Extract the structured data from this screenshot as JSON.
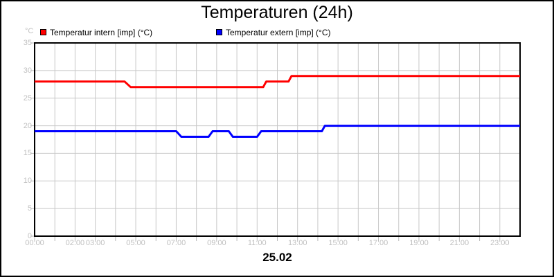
{
  "title": "Temperaturen (24h)",
  "y_axis_unit": "°C",
  "date_label": "25.02",
  "legend": [
    {
      "label": "Temperatur intern [imp] (°C)",
      "color": "#ff0000"
    },
    {
      "label": "Temperatur extern [imp] (°C)",
      "color": "#0000ff"
    }
  ],
  "chart_data": {
    "type": "line",
    "subtype": "step",
    "title": "Temperaturen (24h)",
    "xlabel": "25.02",
    "ylabel": "°C",
    "xlim": [
      0,
      24
    ],
    "ylim": [
      0,
      35
    ],
    "grid": true,
    "legend_position": "top",
    "y_ticks": [
      0,
      5,
      10,
      15,
      20,
      25,
      30,
      35
    ],
    "x_gridline_every_hours": 1,
    "x_tick_labels": [
      {
        "hour": 0,
        "label": "00:00"
      },
      {
        "hour": 2,
        "label": "02:00"
      },
      {
        "hour": 3,
        "label": "03:00"
      },
      {
        "hour": 5,
        "label": "05:00"
      },
      {
        "hour": 7,
        "label": "07:00"
      },
      {
        "hour": 9,
        "label": "09:00"
      },
      {
        "hour": 11,
        "label": "11:00"
      },
      {
        "hour": 13,
        "label": "13:00"
      },
      {
        "hour": 15,
        "label": "15:00"
      },
      {
        "hour": 17,
        "label": "17:00"
      },
      {
        "hour": 19,
        "label": "19:00"
      },
      {
        "hour": 21,
        "label": "21:00"
      },
      {
        "hour": 23,
        "label": "23:00"
      }
    ],
    "series": [
      {
        "name": "Temperatur intern [imp] (°C)",
        "color": "#ff0000",
        "points_hour_value": [
          [
            0,
            28
          ],
          [
            4.45,
            28
          ],
          [
            4.75,
            27
          ],
          [
            11.3,
            27
          ],
          [
            11.45,
            28
          ],
          [
            12.55,
            28
          ],
          [
            12.7,
            29
          ],
          [
            24,
            29
          ]
        ]
      },
      {
        "name": "Temperatur extern [imp] (°C)",
        "color": "#0000ff",
        "points_hour_value": [
          [
            0,
            19
          ],
          [
            7.0,
            19
          ],
          [
            7.25,
            18
          ],
          [
            8.6,
            18
          ],
          [
            8.8,
            19
          ],
          [
            9.6,
            19
          ],
          [
            9.8,
            18
          ],
          [
            11.0,
            18
          ],
          [
            11.2,
            19
          ],
          [
            14.2,
            19
          ],
          [
            14.35,
            20
          ],
          [
            24,
            20
          ]
        ]
      }
    ],
    "colors": {
      "grid": "#c8c8c8",
      "tick": "#b8b8b8",
      "tick_label": "#c0c0c0",
      "axis_border": "#000000",
      "background": "#ffffff"
    }
  }
}
